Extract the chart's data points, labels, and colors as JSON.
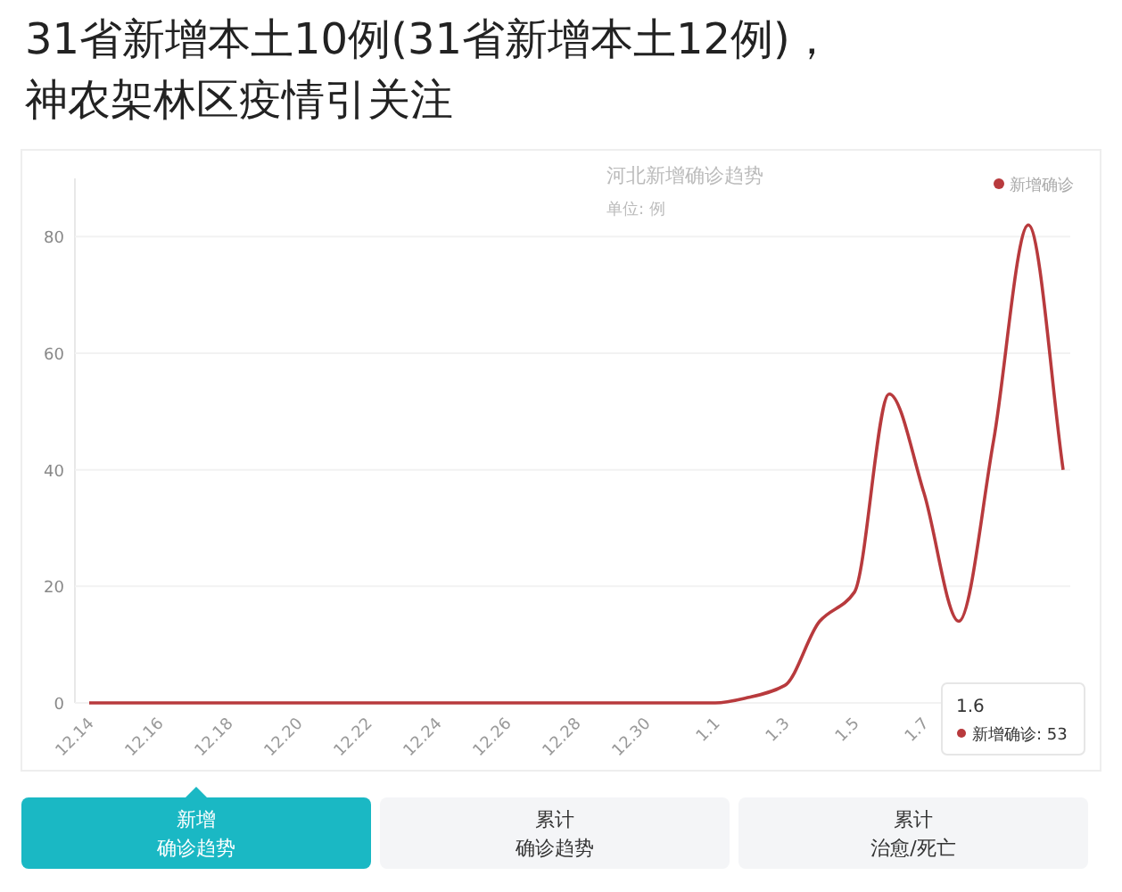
{
  "chart_data": {
    "type": "line",
    "title": "31省新增本土10例(31省新增本土12例)，神农架林区疫情引关注",
    "subtitle": "河北新增确诊趋势",
    "ylabel": "单位: 例",
    "categories": [
      "12.14",
      null,
      "12.16",
      null,
      "12.18",
      null,
      "12.20",
      null,
      "12.22",
      null,
      "12.24",
      null,
      "12.26",
      null,
      "12.28",
      null,
      "12.30",
      null,
      "1.1",
      null,
      "1.3",
      null,
      "1.5",
      null,
      "1.7",
      null,
      null,
      null,
      null
    ],
    "series": [
      {
        "name": "新增确诊",
        "color": "#b83a3d",
        "values": [
          0,
          0,
          0,
          0,
          0,
          0,
          0,
          0,
          0,
          0,
          0,
          0,
          0,
          0,
          0,
          0,
          0,
          0,
          0,
          1,
          3,
          14,
          19,
          53,
          36,
          14,
          45,
          82,
          40
        ]
      }
    ],
    "ylim": [
      0,
      90
    ],
    "yticks": [
      0,
      20,
      40,
      60,
      80
    ],
    "grid": "y",
    "legend": "top right",
    "marker": "none",
    "line_style": "solid",
    "annotations": [
      "1.6",
      "新增确诊: 53",
      "新增",
      "确诊趋势",
      "累计",
      "确诊趋势",
      "累计",
      "治愈/死亡"
    ]
  }
}
